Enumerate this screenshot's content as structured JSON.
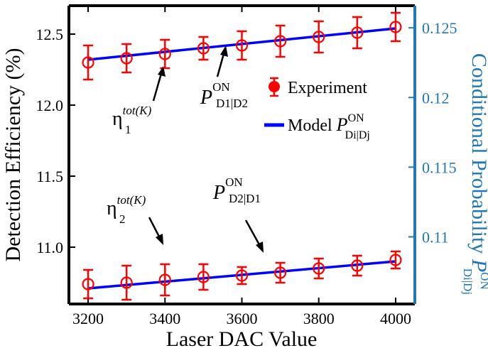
{
  "chart_data": {
    "type": "scatter",
    "xlabel": "Laser DAC Value",
    "ylabel": "Detection Efficiency (%)",
    "y2label_main": "Conditional Probability ",
    "y2label_var": "P",
    "y2label_sup": "ON",
    "y2label_sub": "Di|Dj",
    "xlim": [
      3150,
      4050
    ],
    "ylim": [
      10.6,
      12.7
    ],
    "y2lim": [
      0.10518,
      0.12659
    ],
    "x_ticks": [
      3200,
      3400,
      3600,
      3800,
      4000
    ],
    "y_ticks": [
      11.0,
      11.5,
      12.0,
      12.5
    ],
    "y2_ticks": [
      0.11,
      0.115,
      0.12,
      0.125
    ],
    "x_tick_labels": [
      "3200",
      "3400",
      "3600",
      "3800",
      "4000"
    ],
    "y_tick_labels": [
      "11.0",
      "11.5",
      "12.0",
      "12.5"
    ],
    "y2_tick_labels": [
      "0.11",
      "0.115",
      "0.12",
      "0.125"
    ],
    "colors": {
      "experiment": "#ff0000",
      "model": "#0000ff",
      "right_axis": "#1f77b4",
      "left_axis": "#000000"
    },
    "series": [
      {
        "name": "Experiment",
        "kind": "points",
        "x": [
          3200,
          3300,
          3400,
          3500,
          3600,
          3700,
          3800,
          3900,
          4000
        ],
        "upper": {
          "y": [
            12.3,
            12.33,
            12.36,
            12.4,
            12.42,
            12.45,
            12.48,
            12.51,
            12.55
          ],
          "err": [
            0.12,
            0.1,
            0.1,
            0.08,
            0.1,
            0.11,
            0.11,
            0.11,
            0.1
          ]
        },
        "lower": {
          "y": [
            10.74,
            10.75,
            10.77,
            10.79,
            10.8,
            10.82,
            10.85,
            10.87,
            10.91
          ],
          "err": [
            0.1,
            0.12,
            0.11,
            0.09,
            0.06,
            0.07,
            0.07,
            0.07,
            0.06
          ]
        }
      },
      {
        "name": "Model",
        "kind": "lines",
        "upper": {
          "x": [
            3200,
            4000
          ],
          "y": [
            12.32,
            12.54
          ]
        },
        "lower": {
          "x": [
            3200,
            4000
          ],
          "y": [
            10.71,
            10.9
          ]
        }
      }
    ],
    "legend": {
      "position": "center-right",
      "experiment_label": "Experiment",
      "model_label": "Model ",
      "model_var": "P",
      "model_sup": "ON",
      "model_sub": "Di|Dj"
    },
    "annotations": [
      {
        "id": "eta1",
        "main": "η",
        "sub": "1",
        "sup": "tot(K)"
      },
      {
        "id": "p12",
        "main": "P",
        "sub": "D1|D2",
        "sup": "ON"
      },
      {
        "id": "eta2",
        "main": "η",
        "sub": "2",
        "sup": "tot(K)"
      },
      {
        "id": "p21",
        "main": "P",
        "sub": "D2|D1",
        "sup": "ON"
      }
    ]
  }
}
